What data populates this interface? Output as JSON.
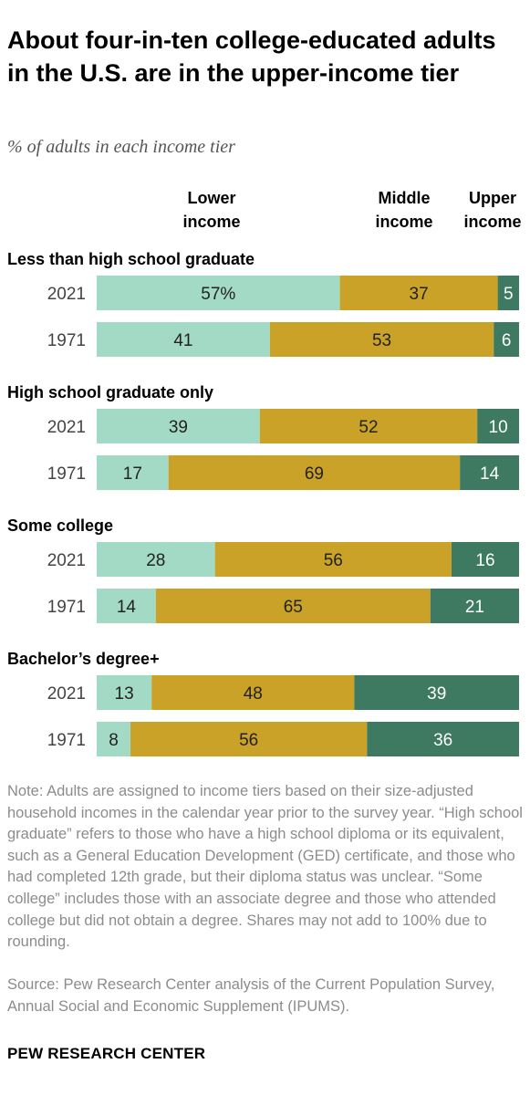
{
  "title": "About four-in-ten college-educated adults in the U.S. are in the upper-income tier",
  "subtitle": "% of adults in each income tier",
  "legend": {
    "lower": "Lower\nincome",
    "middle": "Middle\nincome",
    "upper": "Upper\nincome"
  },
  "colors": {
    "lower": "#a3dac5",
    "middle": "#c9a227",
    "upper": "#3e7a62"
  },
  "chart_data": {
    "type": "bar",
    "orientation": "horizontal",
    "stacked": true,
    "series_names": [
      "Lower income",
      "Middle income",
      "Upper income"
    ],
    "groups": [
      {
        "label": "Less than high school graduate",
        "rows": [
          {
            "year": "2021",
            "values": [
              57,
              37,
              5
            ],
            "labels": [
              "57%",
              "37",
              "5"
            ]
          },
          {
            "year": "1971",
            "values": [
              41,
              53,
              6
            ],
            "labels": [
              "41",
              "53",
              "6"
            ]
          }
        ]
      },
      {
        "label": "High school graduate only",
        "rows": [
          {
            "year": "2021",
            "values": [
              39,
              52,
              10
            ],
            "labels": [
              "39",
              "52",
              "10"
            ]
          },
          {
            "year": "1971",
            "values": [
              17,
              69,
              14
            ],
            "labels": [
              "17",
              "69",
              "14"
            ]
          }
        ]
      },
      {
        "label": "Some college",
        "rows": [
          {
            "year": "2021",
            "values": [
              28,
              56,
              16
            ],
            "labels": [
              "28",
              "56",
              "16"
            ]
          },
          {
            "year": "1971",
            "values": [
              14,
              65,
              21
            ],
            "labels": [
              "14",
              "65",
              "21"
            ]
          }
        ]
      },
      {
        "label": "Bachelor’s degree+",
        "rows": [
          {
            "year": "2021",
            "values": [
              13,
              48,
              39
            ],
            "labels": [
              "13",
              "48",
              "39"
            ]
          },
          {
            "year": "1971",
            "values": [
              8,
              56,
              36
            ],
            "labels": [
              "8",
              "56",
              "36"
            ]
          }
        ]
      }
    ]
  },
  "note": "Note: Adults are assigned to income tiers based on their size-adjusted household incomes in the calendar year prior to the survey year. “High school graduate” refers to those who have a high school diploma or its equivalent, such as a General Education Development (GED) certificate, and those who had completed 12th grade, but their diploma status was unclear. “Some college” includes those with an associate degree and those who attended college but did not obtain a degree. Shares may not add to 100% due to rounding.",
  "source": "Source: Pew Research Center analysis of the Current Population Survey, Annual Social and Economic Supplement (IPUMS).",
  "brand": "PEW RESEARCH CENTER"
}
